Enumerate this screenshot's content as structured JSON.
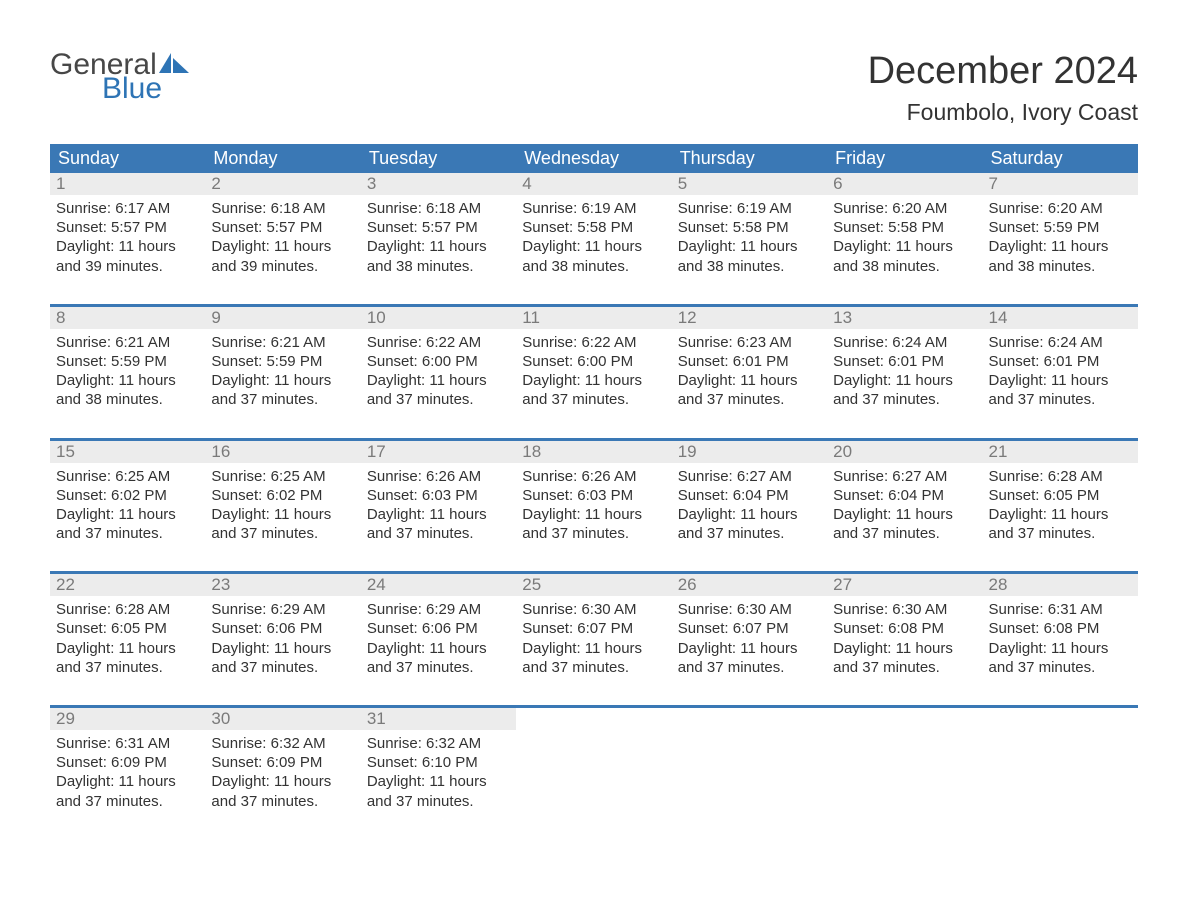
{
  "brand": {
    "part1": "General",
    "part2": "Blue",
    "color_gray": "#474747",
    "color_blue": "#2e74b5"
  },
  "title": "December 2024",
  "location": "Foumbolo, Ivory Coast",
  "theme": {
    "header_bg": "#3a78b5",
    "header_text": "#ffffff",
    "daynum_bg": "#ececec",
    "daynum_text": "#7a7a7a",
    "body_text": "#333333",
    "week_sep": "#3a78b5",
    "page_bg": "#ffffff",
    "font_title_pt": 38,
    "font_location_pt": 23,
    "font_dow_pt": 18,
    "font_daynum_pt": 17,
    "font_cell_pt": 15
  },
  "days_of_week": [
    "Sunday",
    "Monday",
    "Tuesday",
    "Wednesday",
    "Thursday",
    "Friday",
    "Saturday"
  ],
  "weeks": [
    [
      {
        "n": "1",
        "sr": "Sunrise: 6:17 AM",
        "ss": "Sunset: 5:57 PM",
        "d1": "Daylight: 11 hours",
        "d2": "and 39 minutes."
      },
      {
        "n": "2",
        "sr": "Sunrise: 6:18 AM",
        "ss": "Sunset: 5:57 PM",
        "d1": "Daylight: 11 hours",
        "d2": "and 39 minutes."
      },
      {
        "n": "3",
        "sr": "Sunrise: 6:18 AM",
        "ss": "Sunset: 5:57 PM",
        "d1": "Daylight: 11 hours",
        "d2": "and 38 minutes."
      },
      {
        "n": "4",
        "sr": "Sunrise: 6:19 AM",
        "ss": "Sunset: 5:58 PM",
        "d1": "Daylight: 11 hours",
        "d2": "and 38 minutes."
      },
      {
        "n": "5",
        "sr": "Sunrise: 6:19 AM",
        "ss": "Sunset: 5:58 PM",
        "d1": "Daylight: 11 hours",
        "d2": "and 38 minutes."
      },
      {
        "n": "6",
        "sr": "Sunrise: 6:20 AM",
        "ss": "Sunset: 5:58 PM",
        "d1": "Daylight: 11 hours",
        "d2": "and 38 minutes."
      },
      {
        "n": "7",
        "sr": "Sunrise: 6:20 AM",
        "ss": "Sunset: 5:59 PM",
        "d1": "Daylight: 11 hours",
        "d2": "and 38 minutes."
      }
    ],
    [
      {
        "n": "8",
        "sr": "Sunrise: 6:21 AM",
        "ss": "Sunset: 5:59 PM",
        "d1": "Daylight: 11 hours",
        "d2": "and 38 minutes."
      },
      {
        "n": "9",
        "sr": "Sunrise: 6:21 AM",
        "ss": "Sunset: 5:59 PM",
        "d1": "Daylight: 11 hours",
        "d2": "and 37 minutes."
      },
      {
        "n": "10",
        "sr": "Sunrise: 6:22 AM",
        "ss": "Sunset: 6:00 PM",
        "d1": "Daylight: 11 hours",
        "d2": "and 37 minutes."
      },
      {
        "n": "11",
        "sr": "Sunrise: 6:22 AM",
        "ss": "Sunset: 6:00 PM",
        "d1": "Daylight: 11 hours",
        "d2": "and 37 minutes."
      },
      {
        "n": "12",
        "sr": "Sunrise: 6:23 AM",
        "ss": "Sunset: 6:01 PM",
        "d1": "Daylight: 11 hours",
        "d2": "and 37 minutes."
      },
      {
        "n": "13",
        "sr": "Sunrise: 6:24 AM",
        "ss": "Sunset: 6:01 PM",
        "d1": "Daylight: 11 hours",
        "d2": "and 37 minutes."
      },
      {
        "n": "14",
        "sr": "Sunrise: 6:24 AM",
        "ss": "Sunset: 6:01 PM",
        "d1": "Daylight: 11 hours",
        "d2": "and 37 minutes."
      }
    ],
    [
      {
        "n": "15",
        "sr": "Sunrise: 6:25 AM",
        "ss": "Sunset: 6:02 PM",
        "d1": "Daylight: 11 hours",
        "d2": "and 37 minutes."
      },
      {
        "n": "16",
        "sr": "Sunrise: 6:25 AM",
        "ss": "Sunset: 6:02 PM",
        "d1": "Daylight: 11 hours",
        "d2": "and 37 minutes."
      },
      {
        "n": "17",
        "sr": "Sunrise: 6:26 AM",
        "ss": "Sunset: 6:03 PM",
        "d1": "Daylight: 11 hours",
        "d2": "and 37 minutes."
      },
      {
        "n": "18",
        "sr": "Sunrise: 6:26 AM",
        "ss": "Sunset: 6:03 PM",
        "d1": "Daylight: 11 hours",
        "d2": "and 37 minutes."
      },
      {
        "n": "19",
        "sr": "Sunrise: 6:27 AM",
        "ss": "Sunset: 6:04 PM",
        "d1": "Daylight: 11 hours",
        "d2": "and 37 minutes."
      },
      {
        "n": "20",
        "sr": "Sunrise: 6:27 AM",
        "ss": "Sunset: 6:04 PM",
        "d1": "Daylight: 11 hours",
        "d2": "and 37 minutes."
      },
      {
        "n": "21",
        "sr": "Sunrise: 6:28 AM",
        "ss": "Sunset: 6:05 PM",
        "d1": "Daylight: 11 hours",
        "d2": "and 37 minutes."
      }
    ],
    [
      {
        "n": "22",
        "sr": "Sunrise: 6:28 AM",
        "ss": "Sunset: 6:05 PM",
        "d1": "Daylight: 11 hours",
        "d2": "and 37 minutes."
      },
      {
        "n": "23",
        "sr": "Sunrise: 6:29 AM",
        "ss": "Sunset: 6:06 PM",
        "d1": "Daylight: 11 hours",
        "d2": "and 37 minutes."
      },
      {
        "n": "24",
        "sr": "Sunrise: 6:29 AM",
        "ss": "Sunset: 6:06 PM",
        "d1": "Daylight: 11 hours",
        "d2": "and 37 minutes."
      },
      {
        "n": "25",
        "sr": "Sunrise: 6:30 AM",
        "ss": "Sunset: 6:07 PM",
        "d1": "Daylight: 11 hours",
        "d2": "and 37 minutes."
      },
      {
        "n": "26",
        "sr": "Sunrise: 6:30 AM",
        "ss": "Sunset: 6:07 PM",
        "d1": "Daylight: 11 hours",
        "d2": "and 37 minutes."
      },
      {
        "n": "27",
        "sr": "Sunrise: 6:30 AM",
        "ss": "Sunset: 6:08 PM",
        "d1": "Daylight: 11 hours",
        "d2": "and 37 minutes."
      },
      {
        "n": "28",
        "sr": "Sunrise: 6:31 AM",
        "ss": "Sunset: 6:08 PM",
        "d1": "Daylight: 11 hours",
        "d2": "and 37 minutes."
      }
    ],
    [
      {
        "n": "29",
        "sr": "Sunrise: 6:31 AM",
        "ss": "Sunset: 6:09 PM",
        "d1": "Daylight: 11 hours",
        "d2": "and 37 minutes."
      },
      {
        "n": "30",
        "sr": "Sunrise: 6:32 AM",
        "ss": "Sunset: 6:09 PM",
        "d1": "Daylight: 11 hours",
        "d2": "and 37 minutes."
      },
      {
        "n": "31",
        "sr": "Sunrise: 6:32 AM",
        "ss": "Sunset: 6:10 PM",
        "d1": "Daylight: 11 hours",
        "d2": "and 37 minutes."
      },
      null,
      null,
      null,
      null
    ]
  ]
}
